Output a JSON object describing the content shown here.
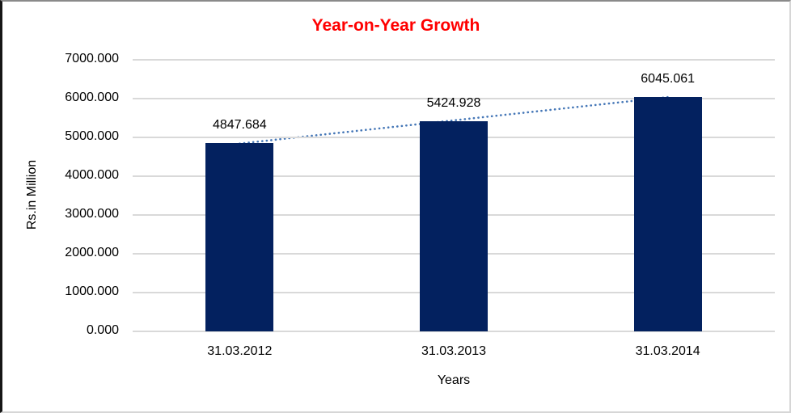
{
  "chart_data": {
    "type": "bar",
    "title": "Year-on-Year Growth",
    "title_color": "#FF0000",
    "categories": [
      "31.03.2012",
      "31.03.2013",
      "31.03.2014"
    ],
    "values": [
      4847.684,
      5424.928,
      6045.061
    ],
    "data_labels": [
      "4847.684",
      "5424.928",
      "6045.061"
    ],
    "xlabel": "Years",
    "ylabel": "Rs.in Million",
    "ylim": [
      0,
      7000
    ],
    "ytick_step": 1000,
    "ytick_labels": [
      "0.000",
      "1000.000",
      "2000.000",
      "3000.000",
      "4000.000",
      "5000.000",
      "6000.000",
      "7000.000"
    ],
    "grid": "horizontal-only",
    "legend": "none",
    "bar_color": "#03215F",
    "gridline_color": "#D9D9D9",
    "text_color": "#000000",
    "trendline": {
      "type": "linear",
      "style": "dotted",
      "color": "#4577B7"
    }
  }
}
